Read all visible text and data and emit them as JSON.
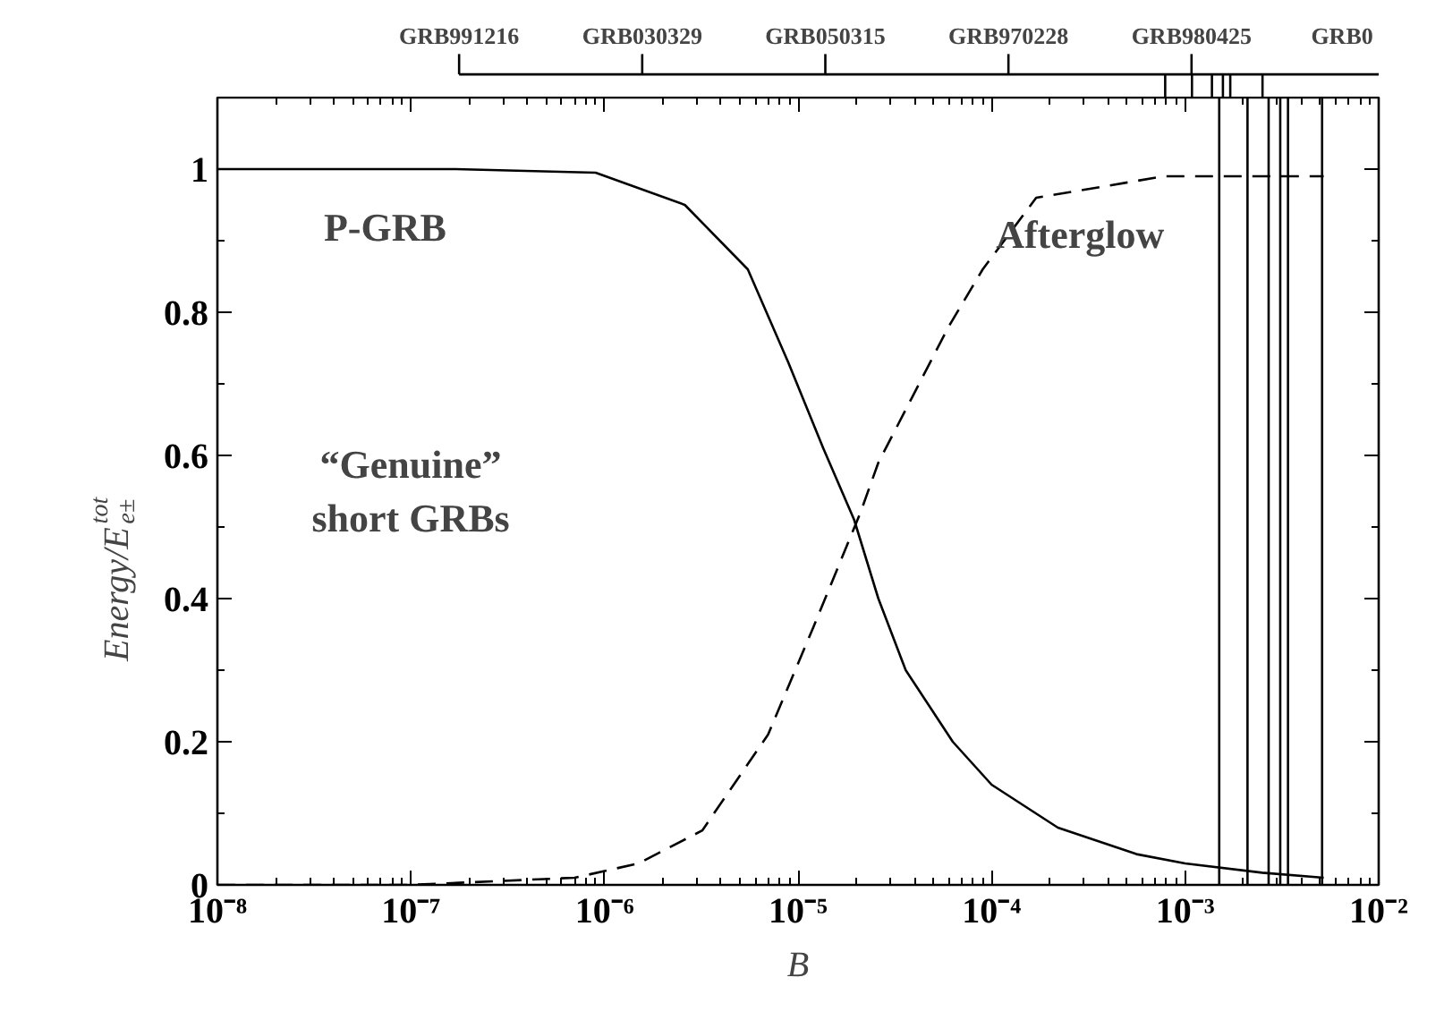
{
  "chart_data": {
    "type": "line",
    "xlabel": "B",
    "ylabel": "Energy/E$_{e±}$$^{tot}$",
    "log": "x",
    "xlim": [
      1e-08,
      0.01
    ],
    "ylim": [
      0,
      1.1
    ],
    "xticks": [
      {
        "value": 1e-08,
        "label": "10⁻⁸"
      },
      {
        "value": 1e-07,
        "label": "10⁻⁷"
      },
      {
        "value": 1e-06,
        "label": "10⁻⁶"
      },
      {
        "value": 1e-05,
        "label": "10⁻⁵"
      },
      {
        "value": 0.0001,
        "label": "10⁻⁴"
      },
      {
        "value": 0.001,
        "label": "10⁻³"
      },
      {
        "value": 0.01,
        "label": "10⁻²"
      }
    ],
    "yticks": [
      {
        "value": 0,
        "label": "0"
      },
      {
        "value": 0.2,
        "label": "0.2"
      },
      {
        "value": 0.4,
        "label": "0.4"
      },
      {
        "value": 0.6,
        "label": "0.6"
      },
      {
        "value": 0.8,
        "label": "0.8"
      },
      {
        "value": 1,
        "label": "1"
      }
    ],
    "series": [
      {
        "name": "P-GRB",
        "color": "#000000",
        "line_style": "solid",
        "x": [
          1e-08,
          1.7e-07,
          9e-07,
          2.6e-06,
          5.5e-06,
          8.9e-06,
          1.35e-05,
          1.95e-05,
          2.6e-05,
          3.6e-05,
          6.3e-05,
          0.0001,
          0.00022,
          0.00056,
          0.001,
          0.0025,
          0.0052
        ],
        "values": [
          1.0,
          1.0,
          0.995,
          0.95,
          0.86,
          0.73,
          0.61,
          0.51,
          0.4,
          0.3,
          0.2,
          0.14,
          0.08,
          0.043,
          0.03,
          0.017,
          0.01
        ]
      },
      {
        "name": "Afterglow",
        "color": "#000000",
        "line_style": "dashed",
        "x": [
          1e-08,
          1e-07,
          7e-07,
          1.5e-06,
          3.2e-06,
          7e-06,
          1.2e-05,
          2.1e-05,
          2.6e-05,
          6e-05,
          9e-05,
          0.00017,
          0.00078,
          0.0022,
          0.0052
        ],
        "values": [
          0.0,
          0.0,
          0.01,
          0.03,
          0.076,
          0.21,
          0.36,
          0.52,
          0.59,
          0.78,
          0.86,
          0.96,
          0.99,
          0.99,
          0.99
        ]
      }
    ],
    "ref_lines": [
      {
        "axis": "x",
        "value": 0.0015,
        "color": "#000000"
      },
      {
        "axis": "x",
        "value": 0.0021,
        "color": "#000000"
      },
      {
        "axis": "x",
        "value": 0.0027,
        "color": "#000000"
      },
      {
        "axis": "x",
        "value": 0.0031,
        "color": "#000000"
      },
      {
        "axis": "x",
        "value": 0.0034,
        "color": "#000000"
      },
      {
        "axis": "x",
        "value": 0.0051,
        "color": "#000000"
      }
    ],
    "annotations": [
      "“Genuine”\nshort GRBs",
      "GRB991216",
      "GRB030329",
      "GRB050315",
      "GRB970228",
      "GRB980425",
      "GRB0"
    ]
  }
}
